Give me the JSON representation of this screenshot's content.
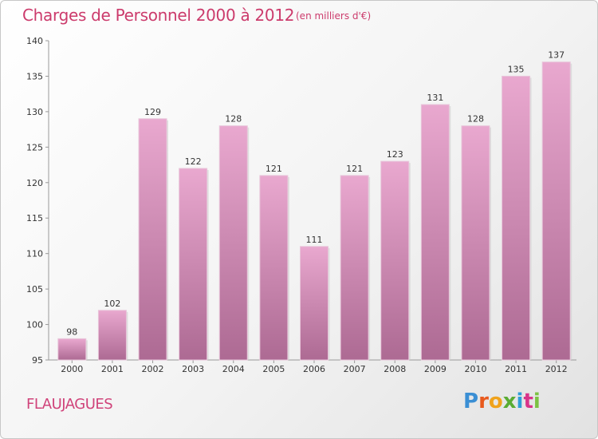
{
  "header": {
    "title": "Charges de Personnel 2000 à 2012",
    "subtitle": "(en milliers d'€)"
  },
  "footer": {
    "commune": "FLAUJAGUES",
    "logo": "Proxiti"
  },
  "colors": {
    "title": "#cc3b6c",
    "bar_top": "#e9a8cf",
    "bar_bottom": "#ad6a93"
  },
  "chart_data": {
    "type": "bar",
    "categories": [
      "2000",
      "2001",
      "2002",
      "2003",
      "2004",
      "2005",
      "2006",
      "2007",
      "2008",
      "2009",
      "2010",
      "2011",
      "2012"
    ],
    "values": [
      98,
      102,
      129,
      122,
      128,
      121,
      111,
      121,
      123,
      131,
      128,
      135,
      137
    ],
    "title": "Charges de Personnel 2000 à 2012",
    "subtitle": "(en milliers d'€)",
    "xlabel": "",
    "ylabel": "",
    "ylim": [
      95,
      140
    ],
    "yticks": [
      95,
      100,
      105,
      110,
      115,
      120,
      125,
      130,
      135,
      140
    ],
    "grid": false,
    "legend": "none"
  }
}
